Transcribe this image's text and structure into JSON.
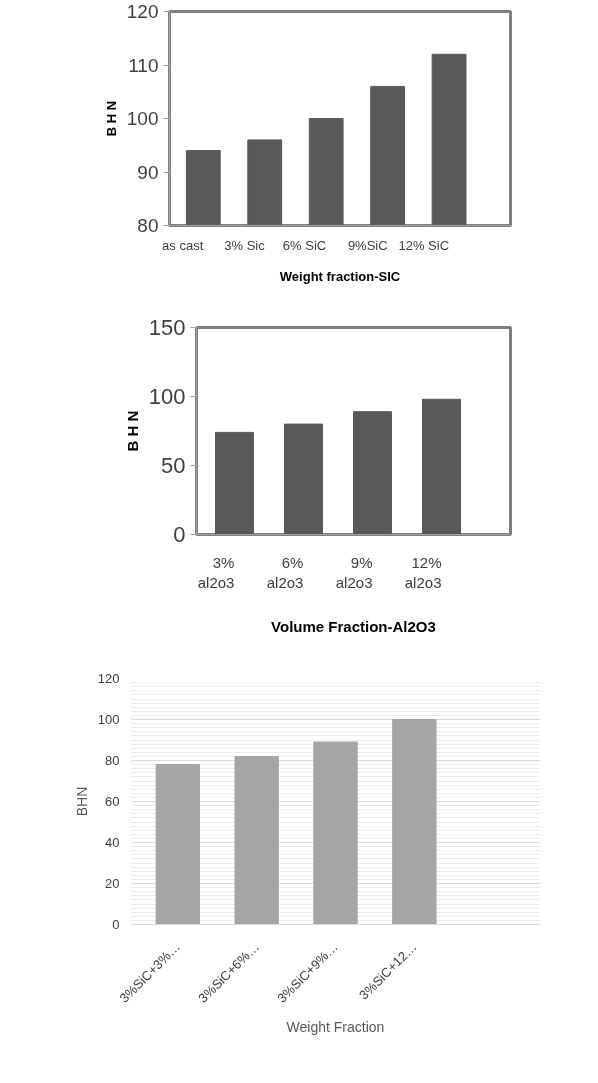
{
  "chart_data": [
    {
      "type": "bar",
      "xlabel": "Weight fraction-SIC",
      "ylabel": "B H N",
      "categories": [
        "as cast",
        "3% Sic",
        "6% SiC",
        "9%SiC",
        "12% SiC"
      ],
      "values": [
        94,
        96,
        100,
        106,
        112
      ],
      "color": "#595959",
      "ylim": [
        80,
        120
      ],
      "yticks": [
        80,
        90,
        100,
        110,
        120
      ],
      "grid": false
    },
    {
      "type": "bar",
      "xlabel": "Volume Fraction-Al2O3",
      "ylabel": "B H N",
      "categories": [
        "3%\nal2o3",
        "6%\nal2o3",
        "9%\nal2o3",
        "12%\nal2o3"
      ],
      "values": [
        74,
        80,
        89,
        98
      ],
      "color": "#595959",
      "ylim": [
        0,
        150
      ],
      "yticks": [
        0,
        50,
        100,
        150
      ],
      "grid": false
    },
    {
      "type": "bar",
      "xlabel": "Weight Fraction",
      "ylabel": "BHN",
      "categories": [
        "3%SiC+3%…",
        "3%SiC+6%…",
        "3%SiC+9%…",
        "3%SiC+12…"
      ],
      "values": [
        78,
        82,
        89,
        100
      ],
      "color": "#a5a5a5",
      "ylim": [
        0,
        120
      ],
      "yticks": [
        0,
        20,
        40,
        60,
        80,
        100,
        120
      ],
      "grid": "y"
    }
  ]
}
